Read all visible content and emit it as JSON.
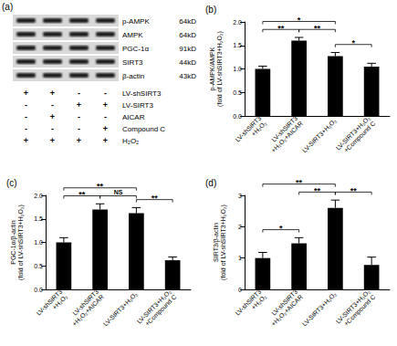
{
  "blot": {
    "label": "(a)",
    "rows": [
      {
        "protein": "p-AMPK",
        "size": "64kD"
      },
      {
        "protein": "AMPK",
        "size": "64kD"
      },
      {
        "protein": "PGC-1α",
        "size": "91kD"
      },
      {
        "protein": "SIRT3",
        "size": "44kD"
      },
      {
        "protein": "β-actin",
        "size": "43kD"
      }
    ],
    "treatments": [
      {
        "name": "LV-shSIRT3",
        "signs": [
          "+",
          "+",
          "-",
          "-"
        ]
      },
      {
        "name": "LV-SIRT3",
        "signs": [
          "-",
          "-",
          "+",
          "+"
        ]
      },
      {
        "name": "AICAR",
        "signs": [
          "-",
          "+",
          "-",
          "-"
        ]
      },
      {
        "name": "Compound C",
        "signs": [
          "-",
          "-",
          "-",
          "+"
        ]
      },
      {
        "name": "H₂O₂",
        "signs": [
          "+",
          "+",
          "+",
          "+"
        ]
      }
    ]
  },
  "chart_data": [
    {
      "type": "bar",
      "title": "(b)",
      "y_label": "p-AMPK/AMPK\n(fold of LV-shSIRT3+H₂O₂)",
      "categories": [
        "LV-shSIRT3\n+H₂O₂",
        "LV-shSIRT3\n+H₂O₂+AICAR",
        "LV-SIRT3+H₂O₂",
        "LV-SIRT3+H₂O₂\n+Compound C"
      ],
      "values": [
        1.0,
        1.6,
        1.27,
        1.05
      ],
      "errors": [
        0.06,
        0.07,
        0.08,
        0.07
      ],
      "color": "#000000",
      "ylim": [
        0,
        2
      ],
      "yticks": [
        {
          "value": 0,
          "label": "0.0"
        },
        {
          "value": 0.5,
          "label": "0.5"
        },
        {
          "value": 1,
          "label": "1.0"
        },
        {
          "value": 1.5,
          "label": "1.5"
        },
        {
          "value": 2,
          "label": "2.0"
        }
      ],
      "grid": false,
      "significance": [
        {
          "from": 0,
          "to": 1,
          "label": "**"
        },
        {
          "from": 1,
          "to": 2,
          "label": "**"
        },
        {
          "from": 2,
          "to": 3,
          "label": "*"
        },
        {
          "from": 0,
          "to": 2,
          "label": "*"
        }
      ]
    },
    {
      "type": "bar",
      "title": "(c)",
      "y_label": "PGC-1α/β-actin\n(fold of LV-shSIRT3+H₂O₂)",
      "categories": [
        "LV-shSIRT3\n+H₂O₂",
        "LV-shSIRT3\n+H₂O₂+AICAR",
        "LV-SIRT3+H₂O₂",
        "LV-SIRT3+H₂O₂\n+Compound C"
      ],
      "values": [
        1.0,
        1.7,
        1.62,
        0.62
      ],
      "errors": [
        0.1,
        0.12,
        0.12,
        0.07
      ],
      "color": "#000000",
      "ylim": [
        0,
        2
      ],
      "yticks": [
        {
          "value": 0,
          "label": "0.0"
        },
        {
          "value": 0.5,
          "label": "0.5"
        },
        {
          "value": 1,
          "label": "1.0"
        },
        {
          "value": 1.5,
          "label": "1.5"
        },
        {
          "value": 2,
          "label": "2.0"
        }
      ],
      "grid": false,
      "significance": [
        {
          "from": 0,
          "to": 1,
          "label": "**"
        },
        {
          "from": 1,
          "to": 2,
          "label": "NS"
        },
        {
          "from": 2,
          "to": 3,
          "label": "**"
        },
        {
          "from": 0,
          "to": 2,
          "label": "**"
        }
      ]
    },
    {
      "type": "bar",
      "title": "(d)",
      "y_label": "SIRT3/β-actin\n(fold of LV-shSIRT3+H₂O₂)",
      "categories": [
        "LV-shSIRT3\n+H₂O₂",
        "LV-shSIRT3\n+H₂O₂+AICAR",
        "LV-SIRT3+H₂O₂",
        "LV-SIRT3+H₂O₂\n+Compound C"
      ],
      "values": [
        1.0,
        1.47,
        2.6,
        0.78
      ],
      "errors": [
        0.18,
        0.18,
        0.25,
        0.25
      ],
      "color": "#000000",
      "ylim": [
        0,
        3
      ],
      "yticks": [
        0,
        1,
        2,
        3
      ],
      "grid": false,
      "significance": [
        {
          "from": 0,
          "to": 1,
          "label": "*"
        },
        {
          "from": 1,
          "to": 2,
          "label": "**"
        },
        {
          "from": 2,
          "to": 3,
          "label": "**"
        },
        {
          "from": 0,
          "to": 2,
          "label": "**"
        }
      ]
    }
  ]
}
